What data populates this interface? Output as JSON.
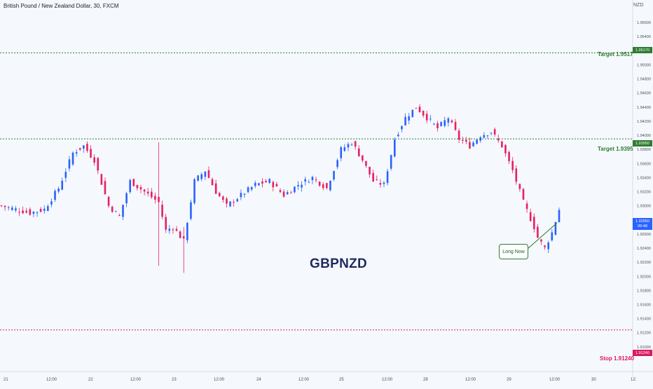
{
  "header": {
    "instrument": "British Pound / New Zealand Dollar, 30, FXCM",
    "currency_unit": "NZD"
  },
  "symbol_label": "GBPNZD",
  "callout_label": "Long Now",
  "lines": {
    "target1": {
      "label": "Target 1.9517",
      "value": 1.9517,
      "tag": "1.95170",
      "color": "#2e7d32"
    },
    "target2": {
      "label": "Target 1.9395",
      "value": 1.9395,
      "tag": "1.93950",
      "color": "#2e7d32"
    },
    "stop": {
      "label": "Stop 1.91240",
      "value": 1.9124,
      "tag": "1.91240",
      "color": "#d81b60"
    }
  },
  "last_price": {
    "value": 1.9295,
    "price": "1.92950",
    "countdown": "09:48",
    "color": "#2962ff"
  },
  "colors": {
    "up": "#2962ff",
    "down": "#e91e63",
    "background": "#f5f8fc"
  },
  "chart_data": {
    "type": "candlestick",
    "y_range": [
      1.9075,
      1.958
    ],
    "y_ticks": [
      "1.95600",
      "1.95400",
      "1.95200",
      "1.95000",
      "1.94800",
      "1.94600",
      "1.94400",
      "1.94200",
      "1.94000",
      "1.93800",
      "1.93600",
      "1.93400",
      "1.93200",
      "1.93000",
      "1.92800",
      "1.92600",
      "1.92400",
      "1.92200",
      "1.92000",
      "1.91800",
      "1.91600",
      "1.91400",
      "1.91200",
      "1.91000"
    ],
    "x_ticks": [
      "21",
      "12:00",
      "22",
      "12:00",
      "23",
      "12:00",
      "24",
      "12:00",
      "25",
      "12:00",
      "28",
      "12:00",
      "29",
      "12:00",
      "30",
      "12:"
    ],
    "anchors": [
      [
        0,
        1.93
      ],
      [
        4,
        1.9295
      ],
      [
        8,
        1.929
      ],
      [
        12,
        1.9295
      ],
      [
        16,
        1.9325
      ],
      [
        20,
        1.9375
      ],
      [
        23,
        1.9385
      ],
      [
        26,
        1.9365
      ],
      [
        30,
        1.93
      ],
      [
        33,
        1.9285
      ],
      [
        36,
        1.9335
      ],
      [
        40,
        1.932
      ],
      [
        44,
        1.9305
      ],
      [
        46,
        1.9265
      ],
      [
        48,
        1.927
      ],
      [
        51,
        1.925
      ],
      [
        54,
        1.9335
      ],
      [
        57,
        1.935
      ],
      [
        60,
        1.932
      ],
      [
        63,
        1.93
      ],
      [
        67,
        1.9315
      ],
      [
        71,
        1.933
      ],
      [
        75,
        1.9335
      ],
      [
        79,
        1.9315
      ],
      [
        83,
        1.933
      ],
      [
        87,
        1.934
      ],
      [
        91,
        1.9325
      ],
      [
        95,
        1.938
      ],
      [
        98,
        1.939
      ],
      [
        101,
        1.9365
      ],
      [
        104,
        1.9335
      ],
      [
        107,
        1.933
      ],
      [
        110,
        1.9395
      ],
      [
        113,
        1.9425
      ],
      [
        116,
        1.944
      ],
      [
        119,
        1.9425
      ],
      [
        122,
        1.941
      ],
      [
        125,
        1.9425
      ],
      [
        128,
        1.9395
      ],
      [
        131,
        1.9385
      ],
      [
        134,
        1.94
      ],
      [
        137,
        1.9405
      ],
      [
        140,
        1.9385
      ],
      [
        143,
        1.935
      ],
      [
        146,
        1.9305
      ],
      [
        149,
        1.927
      ],
      [
        150,
        1.9255
      ],
      [
        152,
        1.924
      ],
      [
        154,
        1.9262
      ],
      [
        156,
        1.9295
      ]
    ],
    "n_candles": 157
  }
}
